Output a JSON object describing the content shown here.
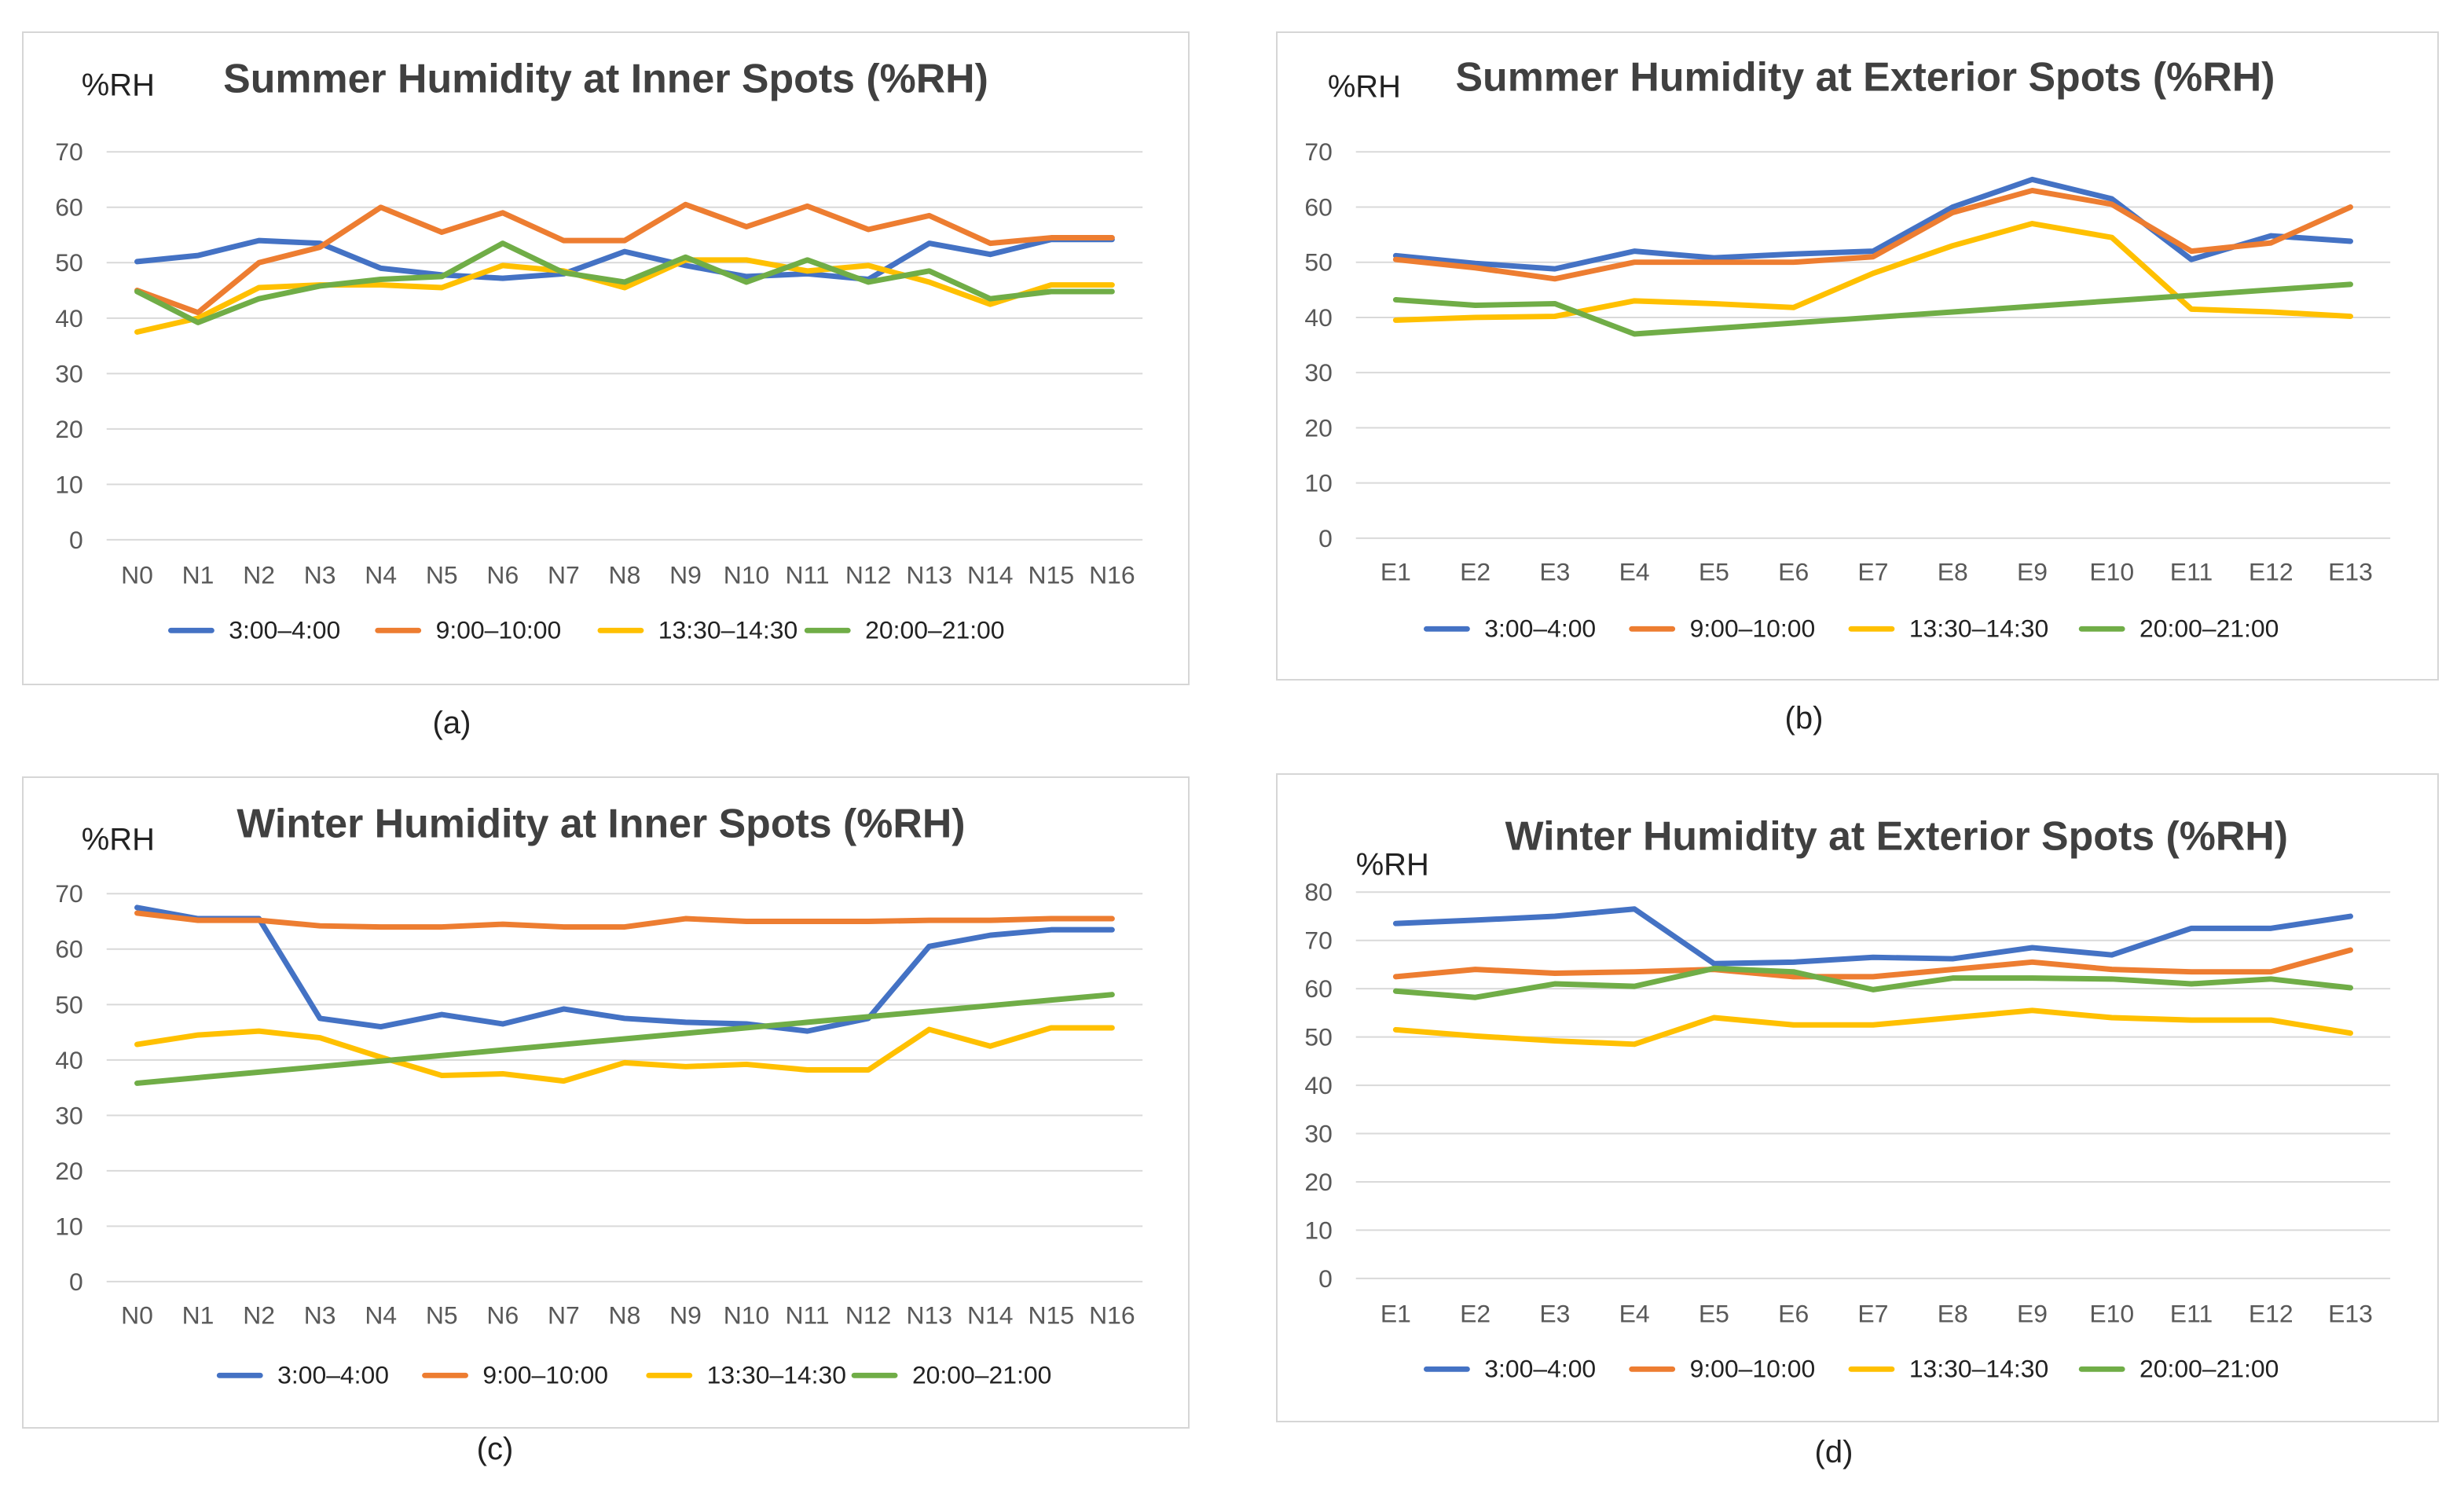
{
  "legend_colors": {
    "3:00–4:00": "#4472C4",
    "9:00–10:00": "#ED7D31",
    "13:30–14:30": "#FFC000",
    "20:00–21:00": "#70AD47"
  },
  "chart_data": [
    {
      "type": "line",
      "caption": "(a)",
      "title": "Summer Humidity at Inner Spots (%RH)",
      "ylabel": "%RH",
      "xlabel": "",
      "ylim": [
        0,
        70
      ],
      "yticks": [
        0,
        10,
        20,
        30,
        40,
        50,
        60,
        70
      ],
      "grid": true,
      "legend_position": "bottom",
      "categories": [
        "N0",
        "N1",
        "N2",
        "N3",
        "N4",
        "N5",
        "N6",
        "N7",
        "N8",
        "N9",
        "N10",
        "N11",
        "N12",
        "N13",
        "N14",
        "N15",
        "N16"
      ],
      "series": [
        {
          "name": "3:00–4:00",
          "color": "#4472C4",
          "values": [
            50.2,
            51.3,
            54.0,
            53.5,
            49.0,
            47.8,
            47.2,
            48.0,
            52.0,
            49.5,
            47.5,
            48.0,
            47.0,
            53.5,
            51.5,
            54.2,
            54.2
          ]
        },
        {
          "name": "9:00–10:00",
          "color": "#ED7D31",
          "values": [
            45.0,
            41.0,
            50.0,
            52.8,
            60.0,
            55.5,
            59.0,
            54.0,
            54.0,
            60.5,
            56.5,
            60.2,
            56.0,
            58.5,
            53.5,
            54.5,
            54.5
          ]
        },
        {
          "name": "13:30–14:30",
          "color": "#FFC000",
          "values": [
            37.5,
            40.0,
            45.5,
            46.0,
            46.0,
            45.5,
            49.5,
            48.5,
            45.5,
            50.5,
            50.5,
            48.5,
            49.5,
            46.5,
            42.5,
            46.0,
            46.0
          ]
        },
        {
          "name": "20:00–21:00",
          "color": "#70AD47",
          "values": [
            44.8,
            39.2,
            43.5,
            45.8,
            47.0,
            47.5,
            53.5,
            48.2,
            46.5,
            51.0,
            46.5,
            50.5,
            46.5,
            48.5,
            43.5,
            44.8,
            44.8
          ]
        }
      ]
    },
    {
      "type": "line",
      "caption": "(b)",
      "title": "Summer Humidity at Exterior Spots (%RH)",
      "ylabel": "%RH",
      "xlabel": "",
      "ylim": [
        0,
        70
      ],
      "yticks": [
        0,
        10,
        20,
        30,
        40,
        50,
        60,
        70
      ],
      "grid": true,
      "legend_position": "bottom",
      "categories": [
        "E1",
        "E2",
        "E3",
        "E4",
        "E5",
        "E6",
        "E7",
        "E8",
        "E9",
        "E10",
        "E11",
        "E12",
        "E13"
      ],
      "series": [
        {
          "name": "3:00–4:00",
          "color": "#4472C4",
          "values": [
            51.2,
            49.8,
            48.8,
            52.0,
            50.8,
            51.5,
            52.0,
            60.0,
            65.0,
            61.5,
            50.5,
            54.8,
            53.8
          ]
        },
        {
          "name": "9:00–10:00",
          "color": "#ED7D31",
          "values": [
            50.5,
            49.0,
            47.0,
            50.0,
            50.0,
            50.0,
            51.0,
            59.0,
            63.0,
            60.5,
            52.0,
            53.5,
            60.0
          ]
        },
        {
          "name": "13:30–14:30",
          "color": "#FFC000",
          "values": [
            39.5,
            40.0,
            40.2,
            43.0,
            42.5,
            41.8,
            48.0,
            53.0,
            57.0,
            54.5,
            41.5,
            41.0,
            40.2
          ]
        },
        {
          "name": "20:00–21:00",
          "color": "#70AD47",
          "values": [
            43.2,
            42.2,
            42.5,
            37.0,
            38.0,
            39.0,
            40.0,
            41.0,
            42.0,
            43.0,
            44.0,
            45.0,
            46.0
          ]
        }
      ]
    },
    {
      "type": "line",
      "caption": "(c)",
      "title": "Winter Humidity at Inner Spots (%RH)",
      "ylabel": "%RH",
      "xlabel": "",
      "ylim": [
        0,
        70
      ],
      "yticks": [
        0,
        10,
        20,
        30,
        40,
        50,
        60,
        70
      ],
      "grid": true,
      "legend_position": "bottom",
      "categories": [
        "N0",
        "N1",
        "N2",
        "N3",
        "N4",
        "N5",
        "N6",
        "N7",
        "N8",
        "N9",
        "N10",
        "N11",
        "N12",
        "N13",
        "N14",
        "N15",
        "N16"
      ],
      "series": [
        {
          "name": "3:00–4:00",
          "color": "#4472C4",
          "values": [
            67.5,
            65.5,
            65.5,
            47.5,
            46.0,
            48.2,
            46.5,
            49.2,
            47.5,
            46.8,
            46.5,
            45.2,
            47.5,
            60.5,
            62.5,
            63.5,
            63.5
          ]
        },
        {
          "name": "9:00–10:00",
          "color": "#ED7D31",
          "values": [
            66.5,
            65.2,
            65.2,
            64.2,
            64.0,
            64.0,
            64.5,
            64.0,
            64.0,
            65.5,
            65.0,
            65.0,
            65.0,
            65.2,
            65.2,
            65.5,
            65.5
          ]
        },
        {
          "name": "13:30–14:30",
          "color": "#FFC000",
          "values": [
            42.8,
            44.5,
            45.2,
            44.0,
            40.5,
            37.2,
            37.5,
            36.2,
            39.5,
            38.8,
            39.2,
            38.2,
            38.2,
            45.5,
            42.5,
            45.8,
            45.8
          ]
        },
        {
          "name": "20:00–21:00",
          "color": "#70AD47",
          "values": [
            35.8,
            36.8,
            37.8,
            38.8,
            39.8,
            40.8,
            41.8,
            42.8,
            43.8,
            44.8,
            45.8,
            46.8,
            47.8,
            48.8,
            49.8,
            50.8,
            51.8
          ]
        }
      ]
    },
    {
      "type": "line",
      "caption": "(d)",
      "title": "Winter Humidity at Exterior Spots (%RH)",
      "ylabel": "%RH",
      "xlabel": "",
      "ylim": [
        0,
        80
      ],
      "yticks": [
        0,
        10,
        20,
        30,
        40,
        50,
        60,
        70,
        80
      ],
      "grid": true,
      "legend_position": "bottom",
      "categories": [
        "E1",
        "E2",
        "E3",
        "E4",
        "E5",
        "E6",
        "E7",
        "E8",
        "E9",
        "E10",
        "E11",
        "E12",
        "E13"
      ],
      "series": [
        {
          "name": "3:00–4:00",
          "color": "#4472C4",
          "values": [
            73.5,
            74.2,
            75.0,
            76.5,
            65.2,
            65.5,
            66.5,
            66.2,
            68.5,
            67.0,
            72.5,
            72.5,
            75.0
          ]
        },
        {
          "name": "9:00–10:00",
          "color": "#ED7D31",
          "values": [
            62.5,
            64.0,
            63.2,
            63.5,
            64.0,
            62.5,
            62.5,
            64.0,
            65.5,
            64.0,
            63.5,
            63.5,
            68.0
          ]
        },
        {
          "name": "13:30–14:30",
          "color": "#FFC000",
          "values": [
            51.5,
            50.2,
            49.2,
            48.5,
            54.0,
            52.5,
            52.5,
            54.0,
            55.5,
            54.0,
            53.5,
            53.5,
            50.8
          ]
        },
        {
          "name": "20:00–21:00",
          "color": "#70AD47",
          "values": [
            59.5,
            58.2,
            61.0,
            60.5,
            64.2,
            63.5,
            59.8,
            62.2,
            62.2,
            62.0,
            61.0,
            62.0,
            60.2
          ]
        }
      ]
    }
  ]
}
